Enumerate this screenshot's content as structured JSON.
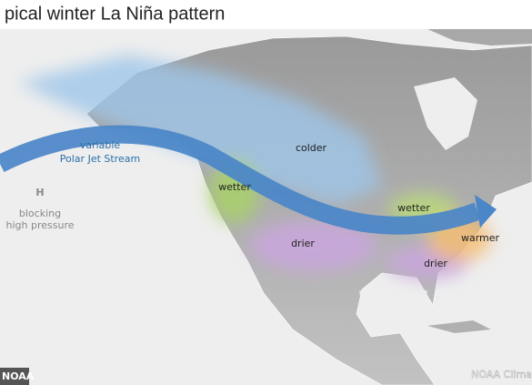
{
  "title": "pical winter La Niña pattern",
  "labels": {
    "jet_line1": "variable",
    "jet_line2": "Polar Jet Stream",
    "high_symbol": "H",
    "high_line1": "blocking",
    "high_line2": "high pressure",
    "colder": "colder",
    "wetter_west": "wetter",
    "wetter_east": "wetter",
    "drier_west": "drier",
    "drier_east": "drier",
    "warmer": "warmer"
  },
  "credits": {
    "left": "NOAA",
    "right": "NOAA Climate"
  }
}
